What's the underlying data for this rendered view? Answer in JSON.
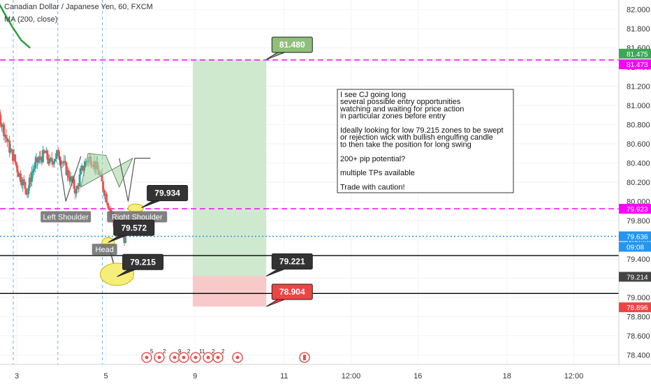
{
  "header": {
    "title": "Canadian Dollar / Japanese Yen, 60, FXCM",
    "indicator": "MA (200, close)"
  },
  "colors": {
    "up": "#26a69a",
    "down": "#ef5350",
    "ma": "#2e9e3e",
    "magenta": "#ff00ff",
    "target_green": "#8fbf7a",
    "stop_red": "#ef4444",
    "dark_label": "#333333",
    "current_blue": "#2196f3"
  },
  "chart_data": {
    "type": "candlestick",
    "symbol": "CADJPY",
    "timeframe": "60",
    "ylim": [
      78.3,
      82.1
    ],
    "y_ticks": [
      "82.000",
      "81.800",
      "81.600",
      "81.400",
      "81.200",
      "81.000",
      "80.800",
      "80.600",
      "80.400",
      "80.200",
      "80.000",
      "79.800",
      "79.600",
      "79.400",
      "79.200",
      "79.000",
      "78.800",
      "78.600",
      "78.400"
    ],
    "x_labels": [
      {
        "label": "3",
        "pos": 3
      },
      {
        "label": "5",
        "pos": 5
      },
      {
        "label": "9",
        "pos": 7
      },
      {
        "label": "11",
        "pos": 9
      },
      {
        "label": "12:00",
        "pos": 10.5
      },
      {
        "label": "16",
        "pos": 12
      },
      {
        "label": "18",
        "pos": 14
      },
      {
        "label": "12:00",
        "pos": 15.5
      }
    ],
    "price_path": [
      [
        2.0,
        80.95
      ],
      [
        2.1,
        81.2
      ],
      [
        2.2,
        81.35
      ],
      [
        2.3,
        81.45
      ],
      [
        2.4,
        81.2
      ],
      [
        2.5,
        81.05
      ],
      [
        2.6,
        80.95
      ],
      [
        2.7,
        80.85
      ],
      [
        2.8,
        80.7
      ],
      [
        2.9,
        80.55
      ],
      [
        3.0,
        80.45
      ],
      [
        3.1,
        80.3
      ],
      [
        3.2,
        80.2
      ],
      [
        3.3,
        80.1
      ],
      [
        3.4,
        80.3
      ],
      [
        3.5,
        80.4
      ],
      [
        3.6,
        80.45
      ],
      [
        3.7,
        80.5
      ],
      [
        3.8,
        80.4
      ],
      [
        3.9,
        80.45
      ],
      [
        4.0,
        80.5
      ],
      [
        4.1,
        80.4
      ],
      [
        4.2,
        80.3
      ],
      [
        4.3,
        80.2
      ],
      [
        4.4,
        80.1
      ],
      [
        4.5,
        80.3
      ],
      [
        4.6,
        80.4
      ],
      [
        4.7,
        80.45
      ],
      [
        4.8,
        80.4
      ],
      [
        4.9,
        80.3
      ],
      [
        5.0,
        80.15
      ],
      [
        5.1,
        80.0
      ],
      [
        5.2,
        79.85
      ],
      [
        5.3,
        79.65
      ],
      [
        5.4,
        79.7
      ],
      [
        5.5,
        79.6
      ]
    ],
    "moving_average": [
      [
        2.5,
        82.15
      ],
      [
        2.7,
        81.98
      ],
      [
        2.9,
        81.82
      ],
      [
        3.1,
        81.68
      ],
      [
        3.3,
        81.6
      ]
    ],
    "horizontal_lines": [
      {
        "name": "resistance",
        "value": 81.475,
        "style": "dashed",
        "color": "#ff00ff"
      },
      {
        "name": "neckline",
        "value": 79.923,
        "style": "dashed",
        "color": "#ff00ff"
      },
      {
        "name": "entry",
        "value": 79.435,
        "style": "solid",
        "color": "#000000"
      },
      {
        "name": "stop",
        "value": 79.04,
        "style": "solid",
        "color": "#000000"
      },
      {
        "name": "current",
        "value": 79.636,
        "style": "dotted",
        "color": "#2196f3"
      }
    ],
    "position": {
      "entry": 79.221,
      "target": 81.48,
      "stop": 78.904,
      "x_start": 6.95,
      "x_end": 8.6
    },
    "callouts": [
      {
        "text": "81.480",
        "value": 81.48,
        "pos": 8.6,
        "color": "#8fbf7a"
      },
      {
        "text": "79.934",
        "value": 79.934,
        "pos": 5.8,
        "color": "#333333"
      },
      {
        "text": "79.572",
        "value": 79.572,
        "pos": 5.05,
        "color": "#333333"
      },
      {
        "text": "79.215",
        "value": 79.215,
        "pos": 5.25,
        "color": "#333333"
      },
      {
        "text": "79.221",
        "value": 79.221,
        "pos": 8.6,
        "color": "#333333"
      },
      {
        "text": "78.904",
        "value": 78.904,
        "pos": 8.6,
        "color": "#ef4444"
      }
    ],
    "price_tags": [
      {
        "text": "81.475",
        "value": 81.475,
        "color": "#3aa857"
      },
      {
        "text": "81.473",
        "value": 81.473,
        "color": "#ff00ff"
      },
      {
        "text": "79.923",
        "value": 79.923,
        "color": "#ff00ff"
      },
      {
        "text": "79.636",
        "value": 79.636,
        "color": "#2196f3"
      },
      {
        "text": "09:08",
        "value": 79.636,
        "color": "#2196f3"
      },
      {
        "text": "79.214",
        "value": 79.214,
        "color": "#444444"
      },
      {
        "text": "78.896",
        "value": 78.896,
        "color": "#ef4444"
      }
    ],
    "pattern_labels": [
      {
        "text": "Left Shoulder"
      },
      {
        "text": "Right Shoulder"
      },
      {
        "text": "Head"
      }
    ],
    "event_markers": [
      "5",
      "2",
      "9",
      "2",
      "11",
      "2",
      "2"
    ]
  },
  "note": {
    "lines": [
      "I see CJ going long",
      "several possible entry opportunities",
      "watching and waiting for price action",
      "in particular zones before entry",
      "",
      "Ideally looking for low 79.215 zones to be swept",
      "or rejection wick with bullish engulfing candle",
      "to then take the position for long swing",
      "",
      "200+ pip potential?",
      "",
      "multiple TPs available",
      "",
      "Trade with caution!"
    ]
  }
}
